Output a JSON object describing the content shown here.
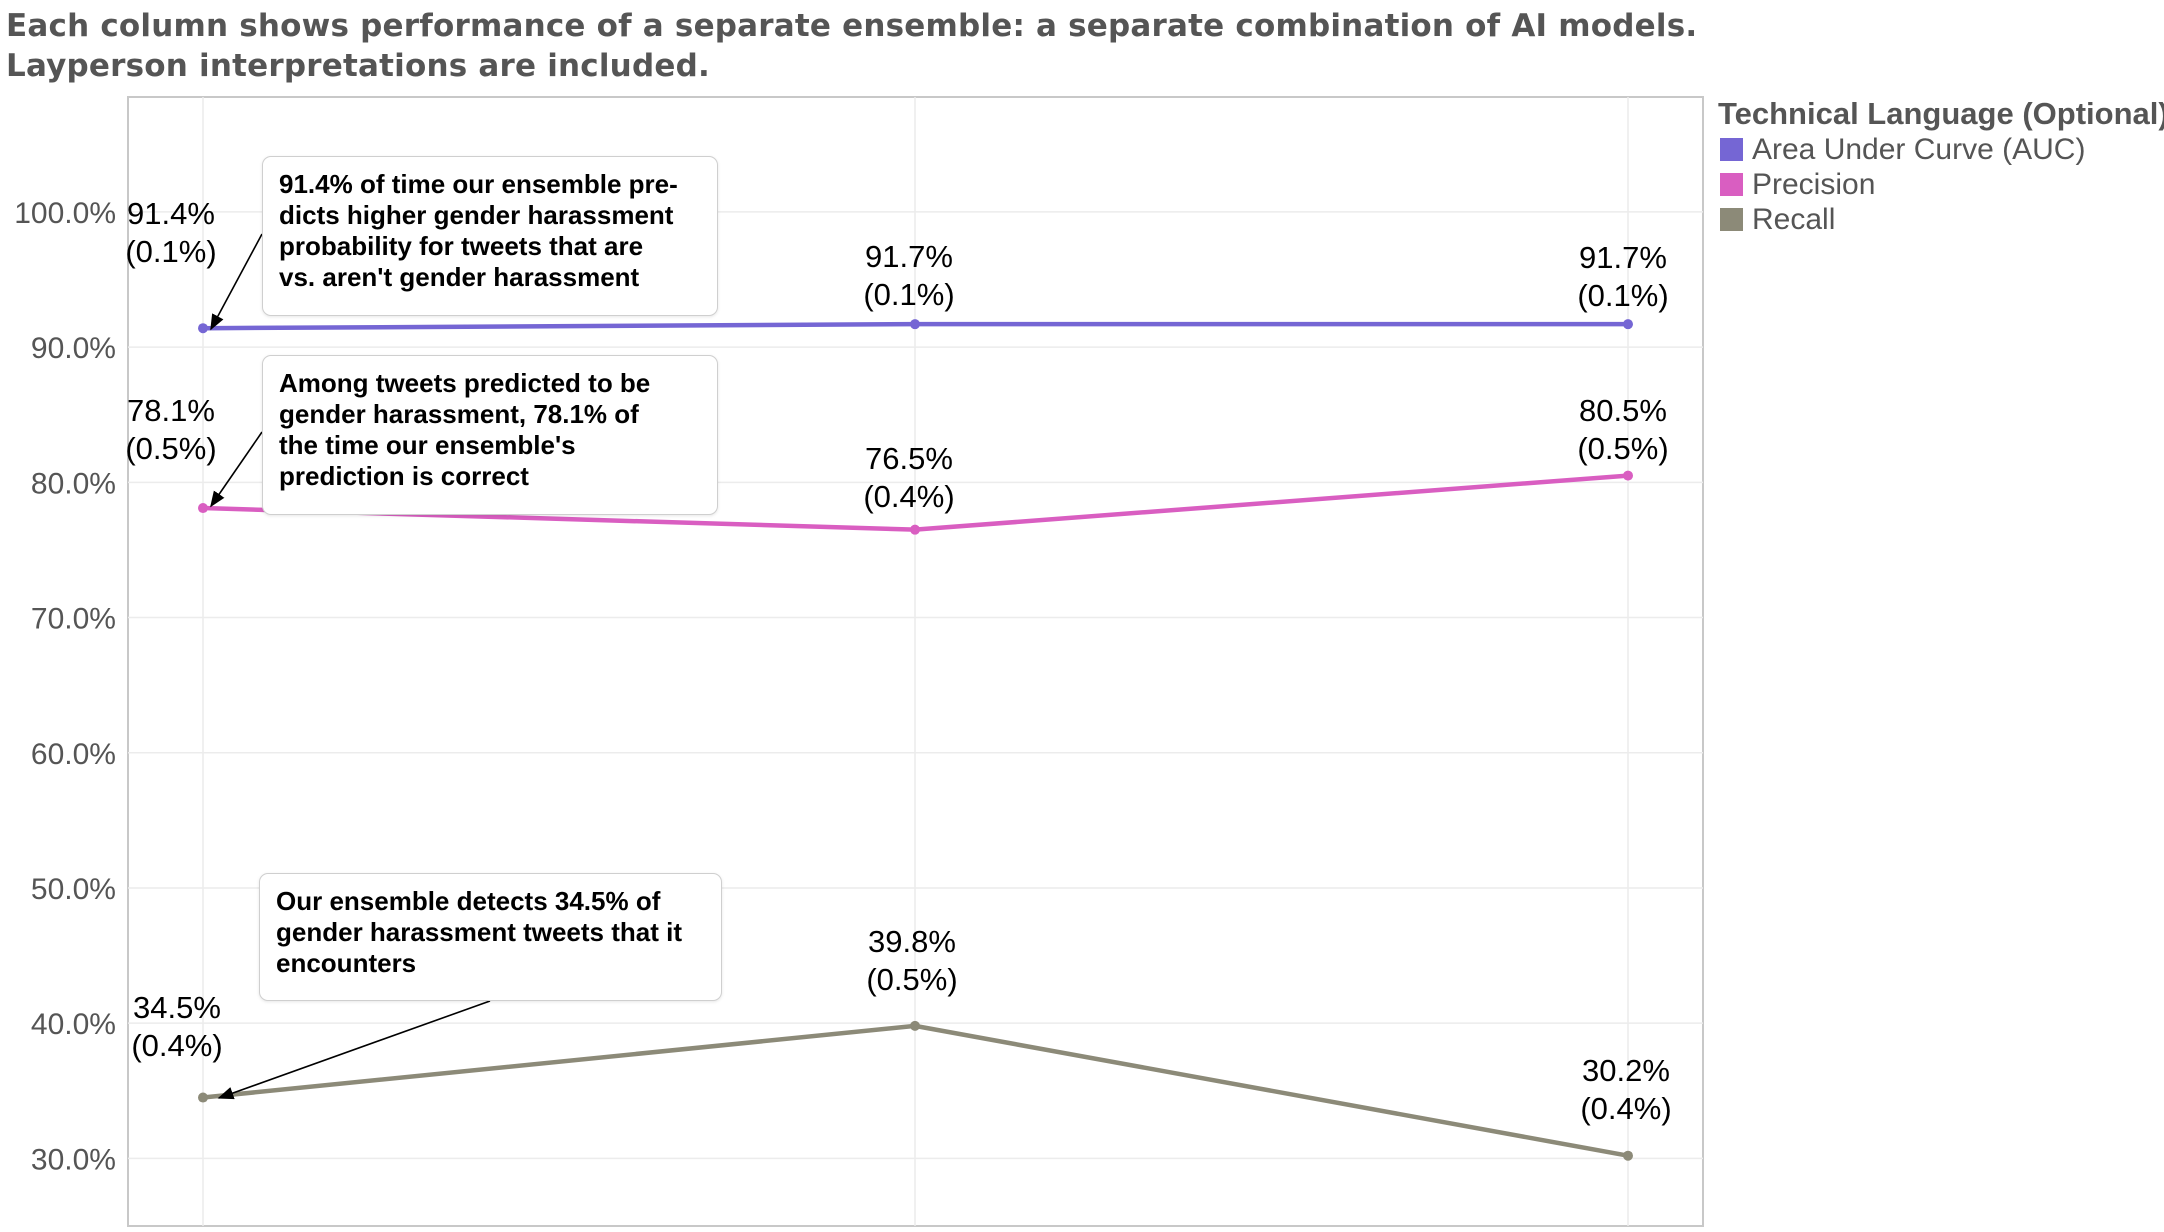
{
  "header": {
    "line1": "Each column shows performance of a separate ensemble: a separate combination of AI models.",
    "line2": "Layperson interpretations are included."
  },
  "legend": {
    "title": "Technical Language (Optional)",
    "items": [
      {
        "label": "Area Under Curve (AUC)",
        "color": "#7566d4"
      },
      {
        "label": "Precision",
        "color": "#d95ec1"
      },
      {
        "label": "Recall",
        "color": "#8c8a78"
      }
    ]
  },
  "callouts": [
    {
      "text": "91.4% of time our ensemble pre-\ndicts higher gender harassment\nprobability for tweets that are\nvs. aren't gender harassment"
    },
    {
      "text": "Among tweets predicted to be\ngender harassment, 78.1% of\nthe time our ensemble's\nprediction is correct"
    },
    {
      "text": "Our ensemble detects 34.5% of\ngender harassment tweets that it\nencounters"
    }
  ],
  "chart_data": {
    "type": "line",
    "x": [
      1,
      2,
      3
    ],
    "ylim": [
      25,
      108.5
    ],
    "y_ticks": [
      "30.0%",
      "40.0%",
      "50.0%",
      "60.0%",
      "70.0%",
      "80.0%",
      "90.0%",
      "100.0%"
    ],
    "y_tick_values": [
      30,
      40,
      50,
      60,
      70,
      80,
      90,
      100
    ],
    "grid": true,
    "legend_position": "right",
    "series": [
      {
        "name": "Area Under Curve (AUC)",
        "color": "#7566d4",
        "values": [
          91.4,
          91.7,
          91.7
        ],
        "labels": [
          [
            "91.4%",
            "(0.1%)"
          ],
          [
            "91.7%",
            "(0.1%)"
          ],
          [
            "91.7%",
            "(0.1%)"
          ]
        ]
      },
      {
        "name": "Precision",
        "color": "#d95ec1",
        "values": [
          78.1,
          76.5,
          80.5
        ],
        "labels": [
          [
            "78.1%",
            "(0.5%)"
          ],
          [
            "76.5%",
            "(0.4%)"
          ],
          [
            "80.5%",
            "(0.5%)"
          ]
        ]
      },
      {
        "name": "Recall",
        "color": "#8c8a78",
        "values": [
          34.5,
          39.8,
          30.2
        ],
        "labels": [
          [
            "34.5%",
            "(0.4%)"
          ],
          [
            "39.8%",
            "(0.5%)"
          ],
          [
            "30.2%",
            "(0.4%)"
          ]
        ]
      }
    ]
  }
}
